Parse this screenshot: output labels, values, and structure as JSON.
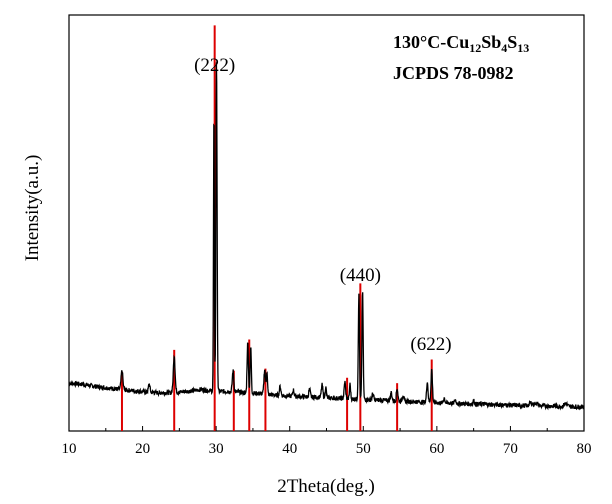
{
  "chart_data": {
    "type": "line",
    "xlabel": "2Theta(deg.)",
    "ylabel": "Intensity(a.u.)",
    "xlim": [
      10,
      80
    ],
    "ylim": [
      0,
      100
    ],
    "x_ticks": [
      "10",
      "20",
      "30",
      "40",
      "50",
      "60",
      "70",
      "80"
    ],
    "y_ticks_shown": false,
    "grid": false,
    "legend": {
      "placement": "top-right",
      "line1": {
        "base": "130°C-Cu",
        "sub1": "12",
        "mid1": "Sb",
        "sub2": "4",
        "mid2": "S",
        "sub3": "13"
      },
      "line2": "JCPDS 78-0982"
    },
    "annotations": [
      {
        "text": "(222)",
        "x": 29.8,
        "y": 86.5
      },
      {
        "text": "(440)",
        "x": 49.6,
        "y": 36
      },
      {
        "text": "(622)",
        "x": 59.2,
        "y": 19.5
      }
    ],
    "series": [
      {
        "baseline": [
          [
            10,
            11.5
          ],
          [
            12,
            11.2
          ],
          [
            14,
            10.6
          ],
          [
            16,
            10.2
          ],
          [
            18,
            9.8
          ],
          [
            20,
            9.5
          ],
          [
            22,
            9.2
          ],
          [
            24,
            9.2
          ],
          [
            26,
            9.5
          ],
          [
            28,
            10
          ],
          [
            30,
            9.5
          ],
          [
            32,
            9.5
          ],
          [
            34,
            9.2
          ],
          [
            36,
            9.0
          ],
          [
            38,
            8.6
          ],
          [
            40,
            8.4
          ],
          [
            45,
            8.0
          ],
          [
            50,
            7.6
          ],
          [
            55,
            7.2
          ],
          [
            60,
            6.8
          ],
          [
            65,
            6.5
          ],
          [
            70,
            6.2
          ],
          [
            75,
            6.0
          ],
          [
            80,
            5.8
          ]
        ],
        "peaks": [
          [
            17.2,
            4.5,
            0.12
          ],
          [
            20.9,
            2.0,
            0.1
          ],
          [
            24.3,
            9,
            0.12
          ],
          [
            29.7,
            67,
            0.06
          ],
          [
            30.05,
            80,
            0.08
          ],
          [
            32.3,
            5,
            0.1
          ],
          [
            34.3,
            12,
            0.09
          ],
          [
            34.7,
            11,
            0.08
          ],
          [
            36.6,
            6,
            0.1
          ],
          [
            36.9,
            5.5,
            0.08
          ],
          [
            38.7,
            2.2,
            0.1
          ],
          [
            40.5,
            1.5,
            0.1
          ],
          [
            42.7,
            1.8,
            0.1
          ],
          [
            44.4,
            3,
            0.1
          ],
          [
            44.9,
            2.5,
            0.08
          ],
          [
            47.5,
            4,
            0.1
          ],
          [
            48.2,
            3.5,
            0.08
          ],
          [
            49.4,
            25,
            0.08
          ],
          [
            49.9,
            26,
            0.08
          ],
          [
            51.3,
            1.5,
            0.1
          ],
          [
            53.8,
            2.0,
            0.1
          ],
          [
            54.6,
            3,
            0.1
          ],
          [
            55.4,
            1.5,
            0.1
          ],
          [
            58.7,
            5,
            0.1
          ],
          [
            59.3,
            8,
            0.1
          ],
          [
            61,
            1.2,
            0.1
          ],
          [
            62.5,
            0.8,
            0.1
          ],
          [
            65.0,
            0.8,
            0.1
          ],
          [
            72.8,
            0.7,
            0.2
          ],
          [
            73.5,
            0.7,
            0.2
          ],
          [
            77.5,
            0.7,
            0.2
          ]
        ],
        "color": "#000000"
      }
    ],
    "reference_lines": {
      "color": "#dd0000",
      "lines": [
        {
          "x": 17.2,
          "y": 14.2
        },
        {
          "x": 24.3,
          "y": 19.5
        },
        {
          "x": 29.8,
          "y": 97.5
        },
        {
          "x": 32.4,
          "y": 14.5
        },
        {
          "x": 34.5,
          "y": 22
        },
        {
          "x": 36.7,
          "y": 15
        },
        {
          "x": 47.8,
          "y": 12.8
        },
        {
          "x": 49.6,
          "y": 35.5
        },
        {
          "x": 54.6,
          "y": 11.5
        },
        {
          "x": 59.3,
          "y": 17.2
        }
      ]
    }
  }
}
